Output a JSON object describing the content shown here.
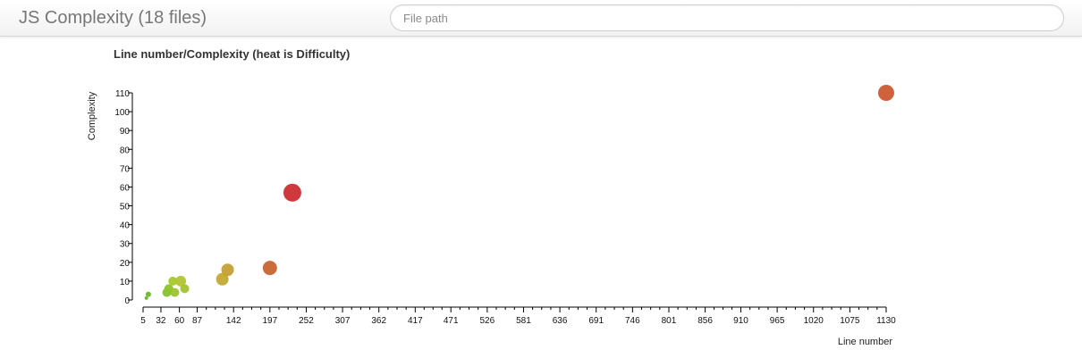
{
  "header": {
    "title": "JS Complexity (18 files)",
    "search_placeholder": "File path"
  },
  "chart_data": {
    "type": "scatter",
    "title": "Line number/Complexity (heat is Difficulty)",
    "xlabel": "Line number",
    "ylabel": "Complexity",
    "x_ticks": [
      5,
      32,
      60,
      87,
      142,
      197,
      252,
      307,
      362,
      417,
      471,
      526,
      581,
      636,
      691,
      746,
      801,
      856,
      910,
      965,
      1020,
      1075,
      1130
    ],
    "y_ticks": [
      0,
      10,
      20,
      30,
      40,
      50,
      60,
      70,
      80,
      90,
      100,
      110
    ],
    "xlim": [
      5,
      1130
    ],
    "ylim": [
      0,
      110
    ],
    "grid": false,
    "heat_scale": [
      "#5fb52a",
      "#d4c93a",
      "#d06a30",
      "#cc2a2a"
    ],
    "points": [
      {
        "x": 10,
        "y": 1,
        "size": 2,
        "color": "#6ab82a"
      },
      {
        "x": 13,
        "y": 3,
        "size": 3,
        "color": "#6ab82a"
      },
      {
        "x": 41,
        "y": 4,
        "size": 5,
        "color": "#86c22c"
      },
      {
        "x": 44,
        "y": 6,
        "size": 5,
        "color": "#8cc52c"
      },
      {
        "x": 50,
        "y": 10,
        "size": 5,
        "color": "#a8c82e"
      },
      {
        "x": 53,
        "y": 4,
        "size": 5,
        "color": "#9cc42e"
      },
      {
        "x": 62,
        "y": 10,
        "size": 6,
        "color": "#b2c430"
      },
      {
        "x": 68,
        "y": 6,
        "size": 5,
        "color": "#a2c42e"
      },
      {
        "x": 125,
        "y": 11,
        "size": 7,
        "color": "#c2aa34"
      },
      {
        "x": 133,
        "y": 16,
        "size": 7,
        "color": "#c4a034"
      },
      {
        "x": 197,
        "y": 17,
        "size": 8,
        "color": "#c86432"
      },
      {
        "x": 231,
        "y": 57,
        "size": 10,
        "color": "#cc2e30"
      },
      {
        "x": 1130,
        "y": 110,
        "size": 9,
        "color": "#cc5a30"
      }
    ]
  }
}
